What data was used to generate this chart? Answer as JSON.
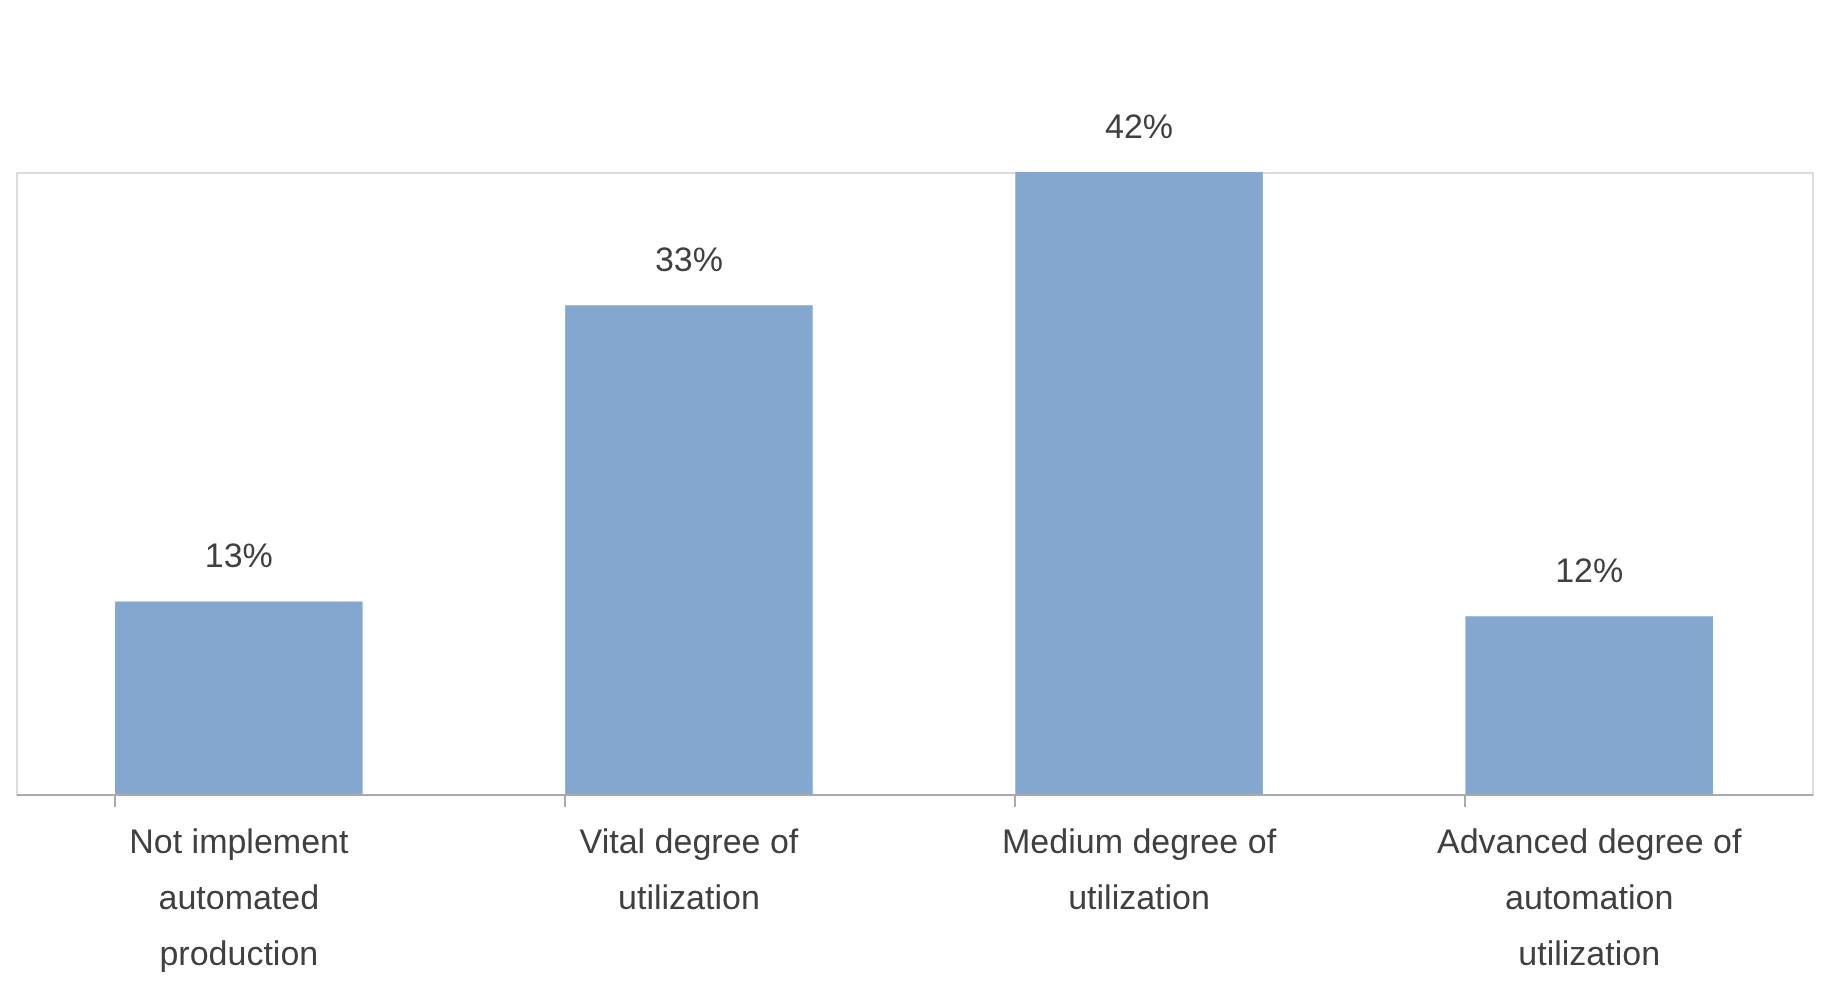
{
  "chart_data": {
    "type": "bar",
    "categories": [
      "Not implement automated production",
      "Vital degree of utilization",
      "Medium degree of utilization",
      "Advanced degree of automation utilization"
    ],
    "values": [
      13,
      33,
      42,
      12
    ],
    "value_labels": [
      "13%",
      "33%",
      "42%",
      "12%"
    ],
    "color": "#84a7d0",
    "grid": false
  }
}
